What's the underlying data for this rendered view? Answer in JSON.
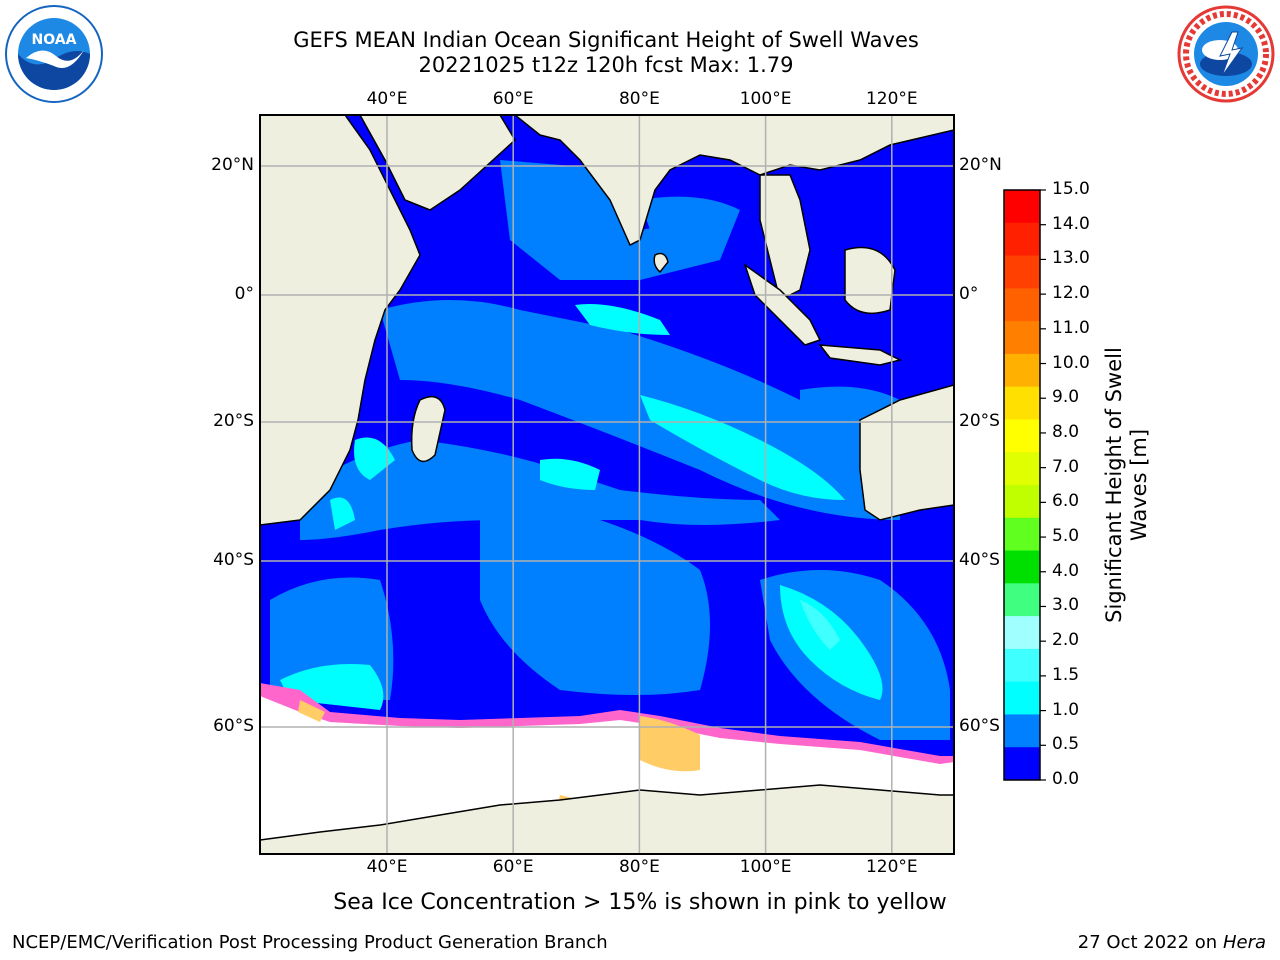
{
  "header": {
    "title_line1": "GEFS MEAN Indian Ocean Significant Height of Swell Waves",
    "title_line2": "20221025 t12z 120h fcst   Max: 1.79"
  },
  "logos": {
    "noaa": {
      "text": "NOAA",
      "ring_text": "NATIONAL OCEANIC AND ATMOSPHERIC ADMINISTRATION · U.S. DEPARTMENT OF COMMERCE",
      "color": "#1565c0"
    },
    "nws": {
      "ring_text": "NATIONAL WEATHER SERVICE",
      "color": "#e53935"
    }
  },
  "map": {
    "lon_labels": [
      "40°E",
      "60°E",
      "80°E",
      "100°E",
      "120°E"
    ],
    "lat_labels_left": [
      "20°N",
      "0°",
      "20°S",
      "40°S",
      "60°S"
    ],
    "lat_labels_right": [
      "20°N",
      "0°",
      "20°S",
      "40°S",
      "60°S"
    ],
    "colors": {
      "land": "#efefe0",
      "ice_area": "#ffffff",
      "swell_0_05": "#0000ff",
      "swell_05_1": "#0080ff",
      "swell_1_15": "#00ffff",
      "swell_15_2": "#40ffff",
      "ice_pink": "#ff66cc",
      "ice_yellow": "#ffcc66"
    }
  },
  "colorbar": {
    "label_line1": "Significant Height of Swell",
    "label_line2": "Waves [m]",
    "ticks": [
      "15.0",
      "14.0",
      "13.0",
      "12.0",
      "11.0",
      "10.0",
      "9.0",
      "8.0",
      "7.0",
      "6.0",
      "5.0",
      "4.0",
      "3.0",
      "2.0",
      "1.5",
      "1.0",
      "0.5",
      "0.0"
    ],
    "colors_top_to_bottom": [
      "#ff0000",
      "#ff2000",
      "#ff4000",
      "#ff6000",
      "#ff8000",
      "#ffb000",
      "#ffe000",
      "#ffff00",
      "#e0ff00",
      "#c0ff00",
      "#60ff20",
      "#00e000",
      "#40ff80",
      "#a0ffff",
      "#40ffff",
      "#00ffff",
      "#0080ff",
      "#0000ff"
    ]
  },
  "caption": "Sea Ice Concentration > 15% is shown in pink to yellow",
  "footer": {
    "left": "NCEP/EMC/Verification Post Processing Product Generation Branch",
    "right_prefix": "27 Oct 2022 on ",
    "right_machine": "Hera"
  }
}
